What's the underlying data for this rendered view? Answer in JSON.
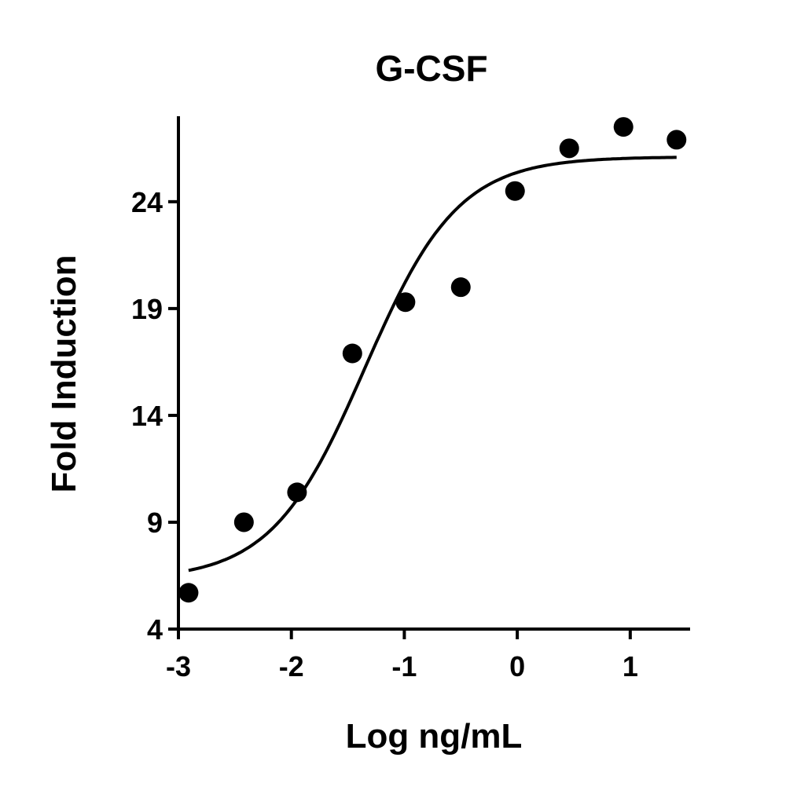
{
  "chart_data": {
    "type": "scatter",
    "title": "G-CSF",
    "xlabel": "Log ng/mL",
    "ylabel": "Fold Induction",
    "xlim": [
      -3,
      1.53
    ],
    "ylim": [
      4,
      28
    ],
    "xticks": [
      -3,
      -2,
      -1,
      0,
      1
    ],
    "xtick_labels": [
      "-3",
      "-2",
      "-1",
      "0",
      "1"
    ],
    "yticks": [
      4,
      9,
      14,
      19,
      24
    ],
    "ytick_labels": [
      "4",
      "9",
      "14",
      "19",
      "24"
    ],
    "grid": false,
    "series": [
      {
        "name": "G-CSF",
        "points": [
          {
            "x": -2.91,
            "y": 5.7
          },
          {
            "x": -2.42,
            "y": 9.0
          },
          {
            "x": -1.95,
            "y": 10.4
          },
          {
            "x": -1.46,
            "y": 16.9
          },
          {
            "x": -0.99,
            "y": 19.3
          },
          {
            "x": -0.5,
            "y": 20.0
          },
          {
            "x": -0.02,
            "y": 24.5
          },
          {
            "x": 0.46,
            "y": 26.5
          },
          {
            "x": 0.94,
            "y": 27.5
          },
          {
            "x": 1.41,
            "y": 26.9
          }
        ],
        "color": "#000000"
      }
    ],
    "fit": {
      "model": "4PL",
      "bottom": 6.3,
      "top": 26.1,
      "log_ec50": -1.35,
      "hill_slope": 1.05,
      "x_range": [
        -2.91,
        1.41
      ]
    }
  }
}
